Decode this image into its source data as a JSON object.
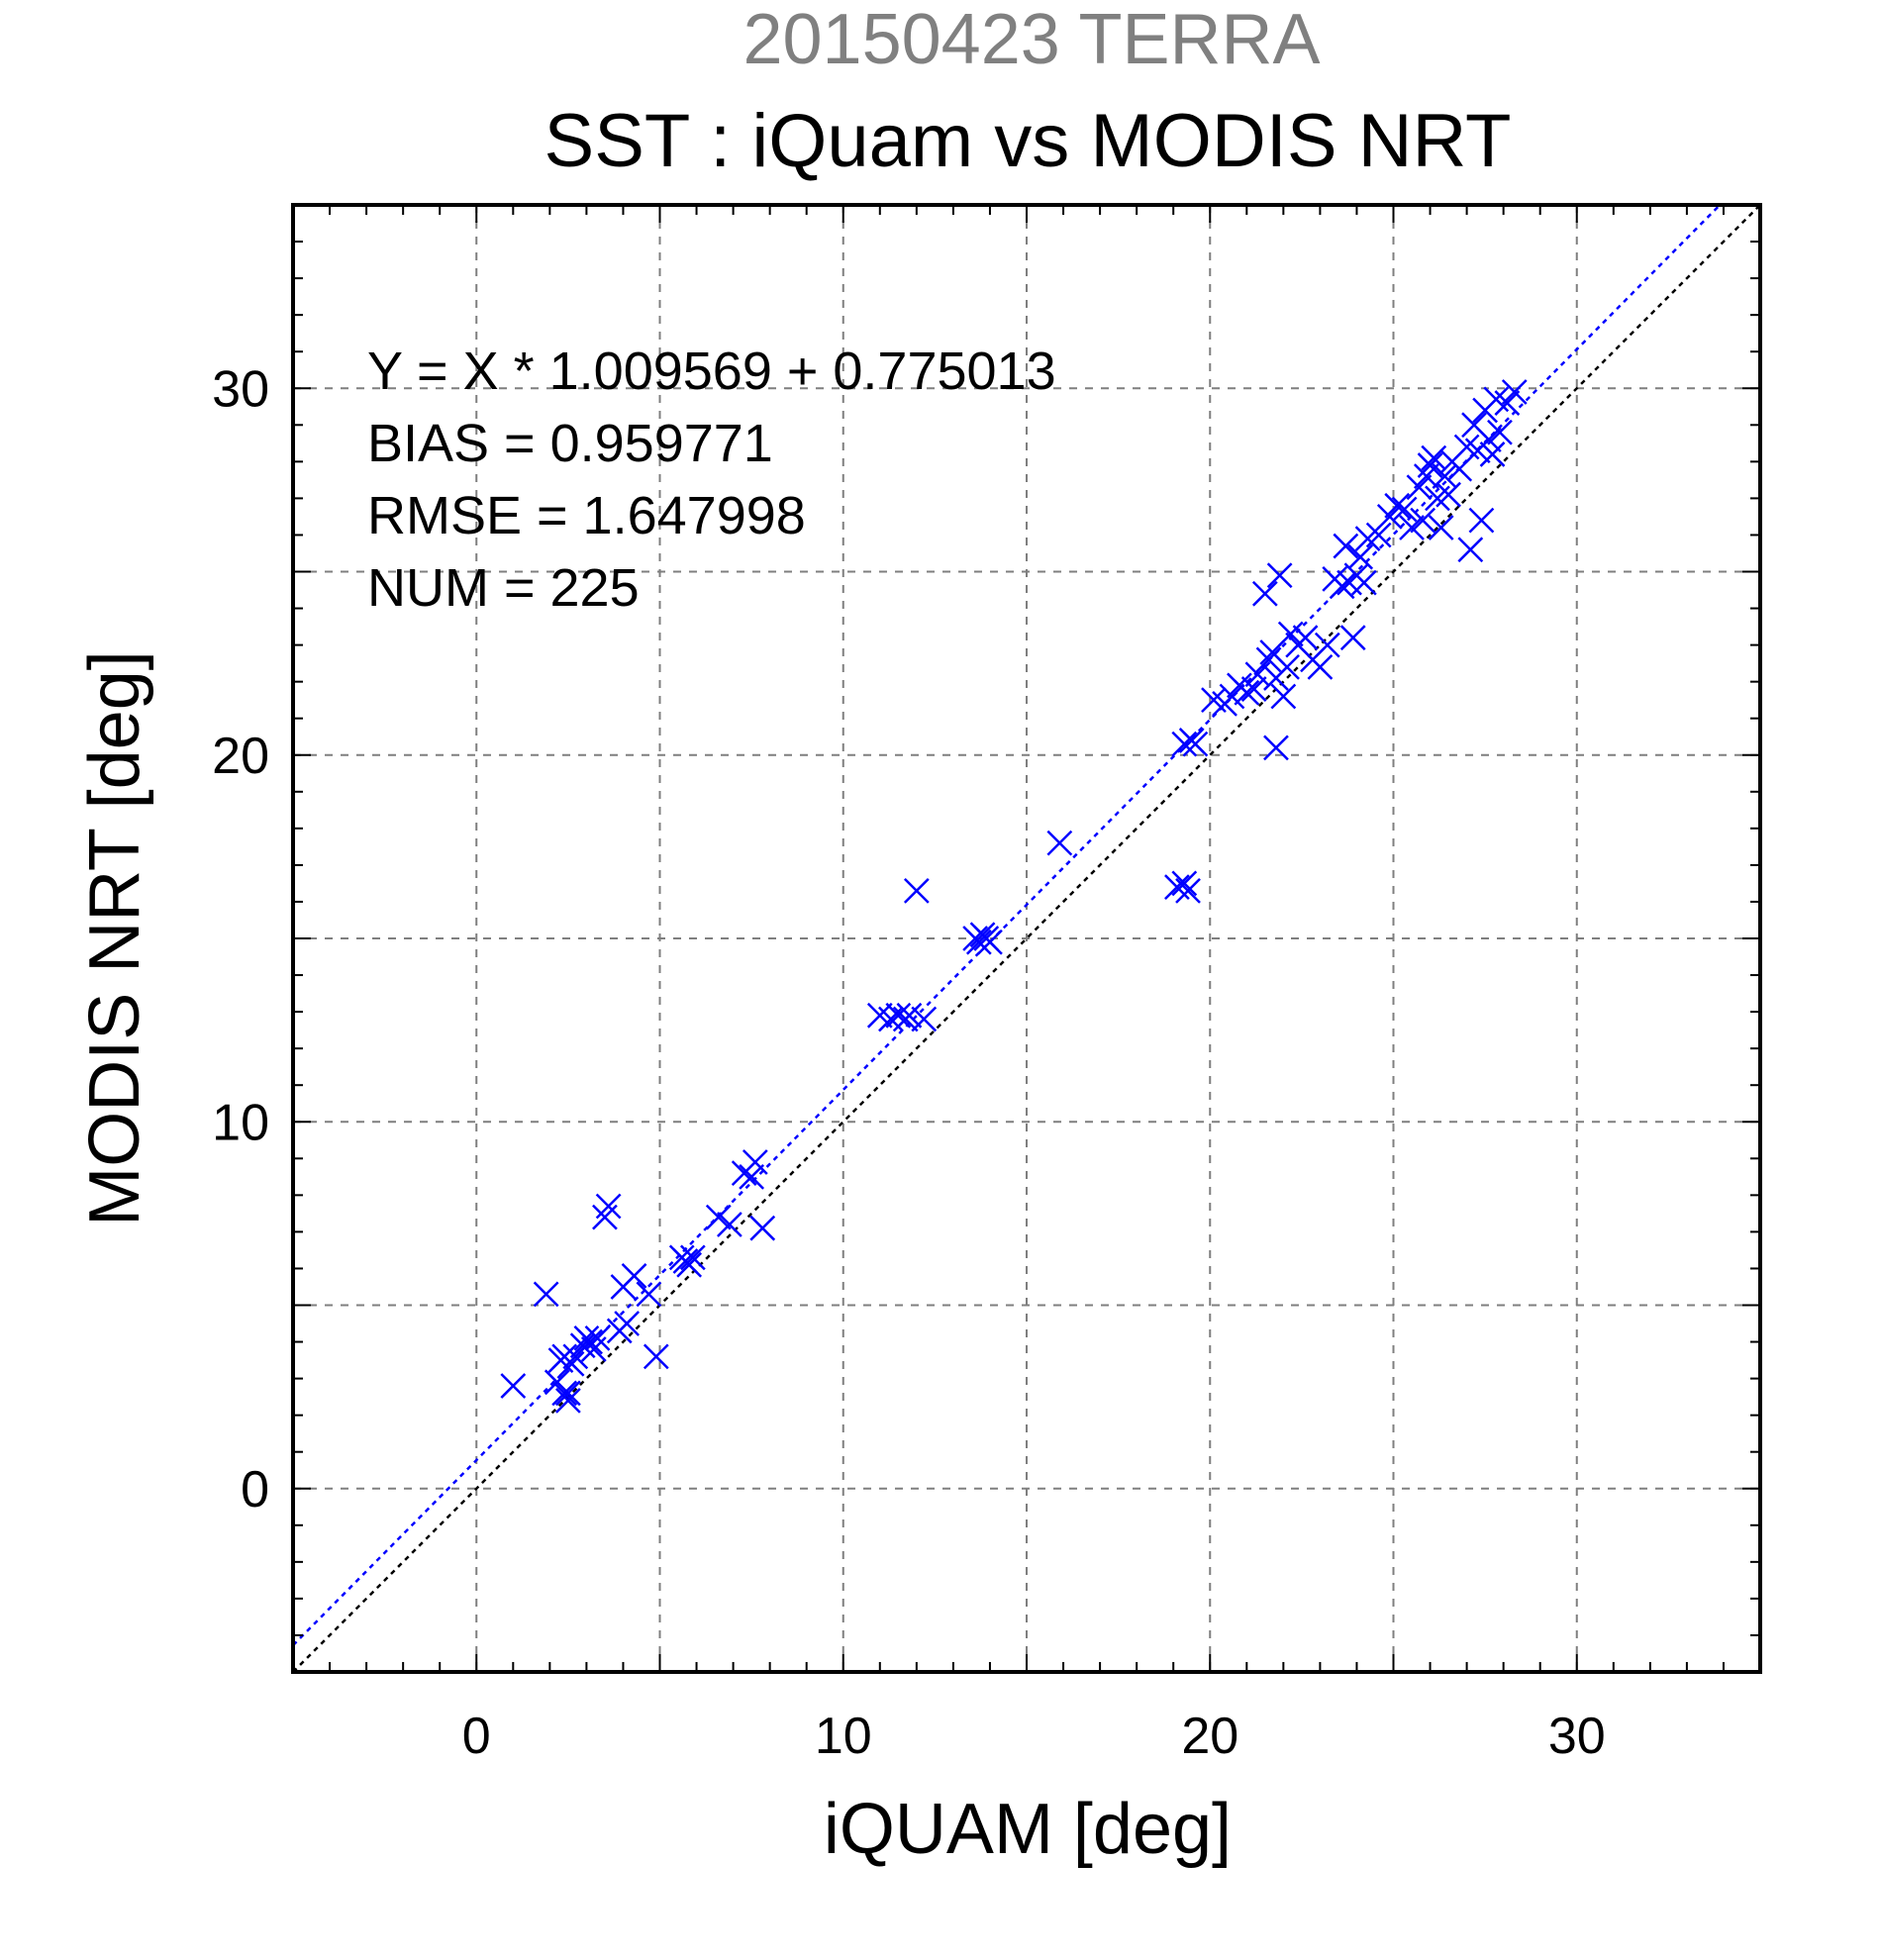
{
  "chart_data": {
    "type": "scatter",
    "title_top": "20150423 TERRA",
    "title": "SST : iQuam vs MODIS NRT",
    "xlabel": "iQUAM [deg]",
    "ylabel": "MODIS NRT [deg]",
    "xlim": [
      -5,
      35
    ],
    "ylim": [
      -5,
      35
    ],
    "xticks": [
      0,
      10,
      20,
      30
    ],
    "yticks": [
      0,
      10,
      20,
      30
    ],
    "grid": true,
    "marker": "x",
    "marker_color": "#0000ff",
    "stats": [
      "Y = X * 1.009569 + 0.775013",
      "BIAS = 0.959771",
      "RMSE = 1.647998",
      "NUM = 225"
    ],
    "lines": [
      {
        "kind": "regression",
        "slope": 1.009569,
        "intercept": 0.775013,
        "color": "#0000ff"
      },
      {
        "kind": "one-to-one",
        "slope": 1,
        "intercept": 0,
        "color": "#000000"
      }
    ],
    "points": [
      [
        1.0,
        2.8
      ],
      [
        1.9,
        5.3
      ],
      [
        2.2,
        2.9
      ],
      [
        2.3,
        3.5
      ],
      [
        2.4,
        3.6
      ],
      [
        2.4,
        2.6
      ],
      [
        2.5,
        2.4
      ],
      [
        2.5,
        2.6
      ],
      [
        2.6,
        3.4
      ],
      [
        2.7,
        3.6
      ],
      [
        2.9,
        3.9
      ],
      [
        3.0,
        4.1
      ],
      [
        3.1,
        4.0
      ],
      [
        3.2,
        3.8
      ],
      [
        3.3,
        4.1
      ],
      [
        3.5,
        7.4
      ],
      [
        3.6,
        7.7
      ],
      [
        3.9,
        4.3
      ],
      [
        4.0,
        5.5
      ],
      [
        4.1,
        4.5
      ],
      [
        4.3,
        5.8
      ],
      [
        4.7,
        5.3
      ],
      [
        4.9,
        3.6
      ],
      [
        5.6,
        6.3
      ],
      [
        5.7,
        6.2
      ],
      [
        5.8,
        6.1
      ],
      [
        5.9,
        6.3
      ],
      [
        6.6,
        7.4
      ],
      [
        6.9,
        7.2
      ],
      [
        7.3,
        8.6
      ],
      [
        7.5,
        8.5
      ],
      [
        7.6,
        8.9
      ],
      [
        7.8,
        7.1
      ],
      [
        11.0,
        12.9
      ],
      [
        11.3,
        12.8
      ],
      [
        11.5,
        12.9
      ],
      [
        11.7,
        12.8
      ],
      [
        11.8,
        12.9
      ],
      [
        12.0,
        16.3
      ],
      [
        12.2,
        12.8
      ],
      [
        13.6,
        15.0
      ],
      [
        13.7,
        14.9
      ],
      [
        13.8,
        15.1
      ],
      [
        13.9,
        15.0
      ],
      [
        14.0,
        14.9
      ],
      [
        15.9,
        17.6
      ],
      [
        19.1,
        16.4
      ],
      [
        19.3,
        16.5
      ],
      [
        19.4,
        16.3
      ],
      [
        19.3,
        20.3
      ],
      [
        19.5,
        20.4
      ],
      [
        19.6,
        20.3
      ],
      [
        20.1,
        21.5
      ],
      [
        20.4,
        21.4
      ],
      [
        20.6,
        21.6
      ],
      [
        20.8,
        21.9
      ],
      [
        21.0,
        21.7
      ],
      [
        21.2,
        21.8
      ],
      [
        21.3,
        22.2
      ],
      [
        21.5,
        24.4
      ],
      [
        21.6,
        22.6
      ],
      [
        21.7,
        22.8
      ],
      [
        21.8,
        20.2
      ],
      [
        21.8,
        22.1
      ],
      [
        21.9,
        24.9
      ],
      [
        22.0,
        21.6
      ],
      [
        22.1,
        22.4
      ],
      [
        22.2,
        23.3
      ],
      [
        22.4,
        23.0
      ],
      [
        22.6,
        23.2
      ],
      [
        22.8,
        22.6
      ],
      [
        23.0,
        22.4
      ],
      [
        23.2,
        23.0
      ],
      [
        23.4,
        24.8
      ],
      [
        23.6,
        24.6
      ],
      [
        23.7,
        25.7
      ],
      [
        23.8,
        24.7
      ],
      [
        23.9,
        23.2
      ],
      [
        24.0,
        24.9
      ],
      [
        24.1,
        25.4
      ],
      [
        24.2,
        24.7
      ],
      [
        24.3,
        25.9
      ],
      [
        24.6,
        26.0
      ],
      [
        24.9,
        26.5
      ],
      [
        25.1,
        26.8
      ],
      [
        25.3,
        26.7
      ],
      [
        25.5,
        26.2
      ],
      [
        25.7,
        27.3
      ],
      [
        25.8,
        26.4
      ],
      [
        25.9,
        27.6
      ],
      [
        26.0,
        27.9
      ],
      [
        26.1,
        28.1
      ],
      [
        26.2,
        27.0
      ],
      [
        26.3,
        26.2
      ],
      [
        26.4,
        27.6
      ],
      [
        26.5,
        27.1
      ],
      [
        26.6,
        28.0
      ],
      [
        26.8,
        27.8
      ],
      [
        27.0,
        28.4
      ],
      [
        27.1,
        25.6
      ],
      [
        27.2,
        29.0
      ],
      [
        27.3,
        28.3
      ],
      [
        27.4,
        26.4
      ],
      [
        27.5,
        29.4
      ],
      [
        27.6,
        28.6
      ],
      [
        27.7,
        28.2
      ],
      [
        27.8,
        29.7
      ],
      [
        27.9,
        28.8
      ],
      [
        28.1,
        29.6
      ],
      [
        28.3,
        29.9
      ]
    ]
  }
}
